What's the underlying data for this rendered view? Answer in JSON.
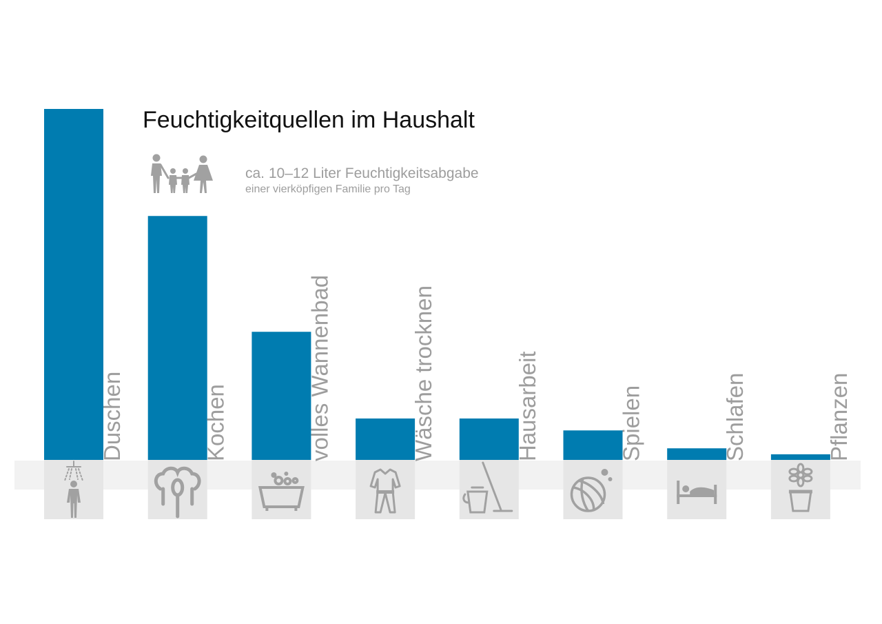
{
  "chart_data": {
    "type": "bar",
    "title": "Feuchtigkeitquellen im Haushalt",
    "subtitle_line1": "ca. 10–12 Liter Feuchtigkeitsabgabe",
    "subtitle_line2": "einer vierköpfigen Familie pro Tag",
    "categories": [
      "Duschen",
      "Kochen",
      "volles Wannenbad",
      "Wäsche trocknen",
      "Hausarbeit",
      "Spielen",
      "Schlafen",
      "Pflanzen"
    ],
    "values": [
      100,
      69.5,
      36.5,
      11.8,
      11.8,
      8.4,
      3.3,
      1.6
    ],
    "icons": [
      "shower-icon",
      "cooking-pot-icon",
      "bathtub-icon",
      "laundry-icon",
      "bucket-mop-icon",
      "ball-icon",
      "bed-icon",
      "flower-pot-icon"
    ],
    "ylim": [
      0,
      100
    ],
    "grid": false,
    "legend": "none",
    "colors": {
      "bar": "#007cb0",
      "label": "#9d9d9d",
      "icon": "#a1a1a1",
      "band": "#f2f2f2",
      "tile": "#e6e6e6"
    }
  },
  "header_icon": "family-icon"
}
